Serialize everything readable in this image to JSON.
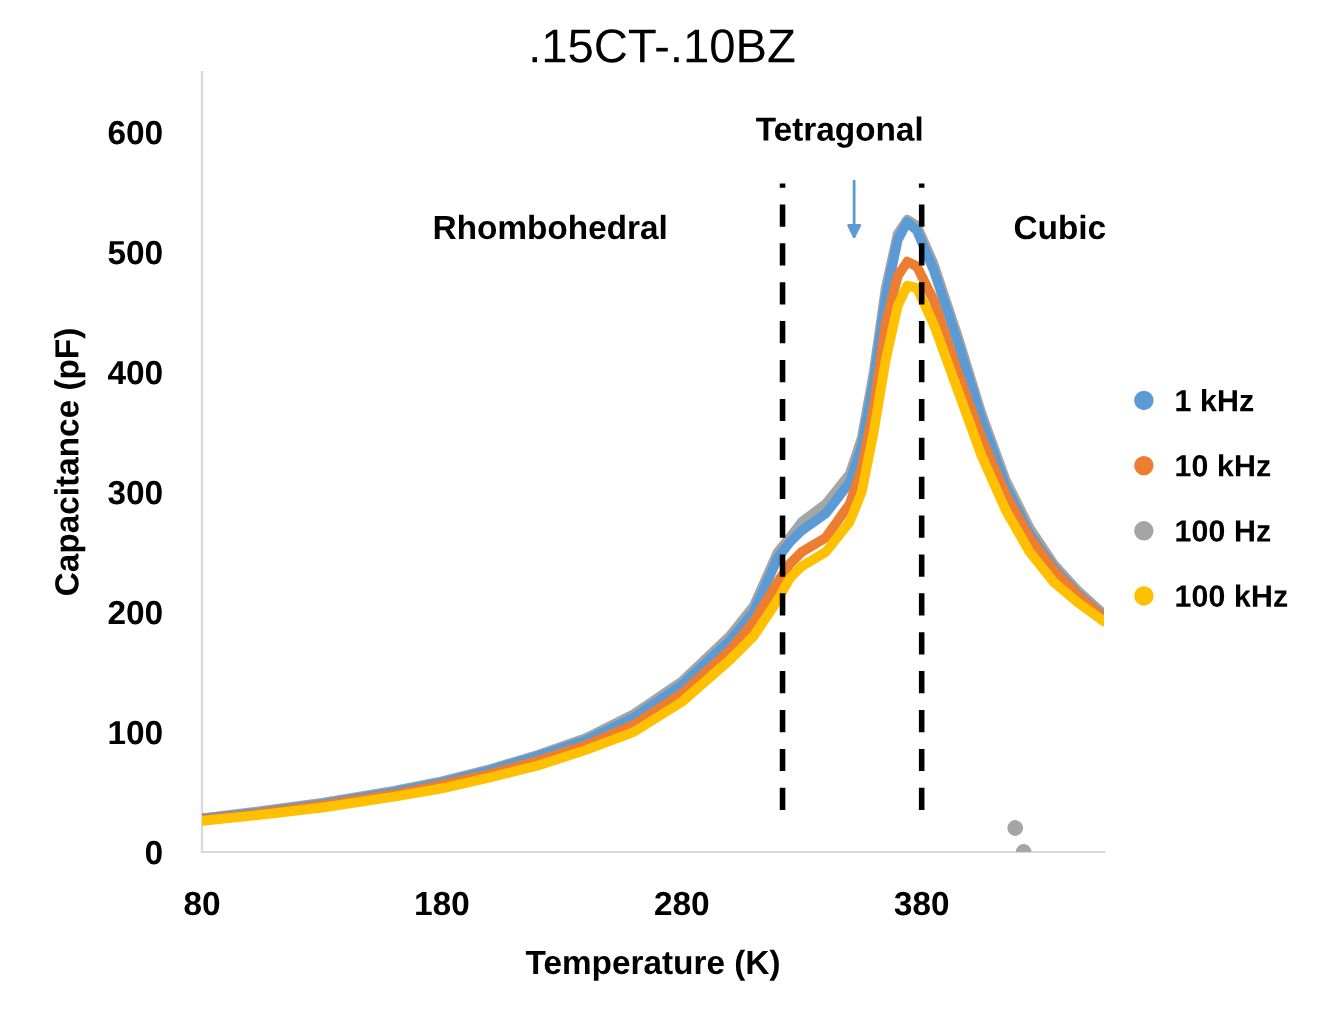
{
  "chart_data": {
    "type": "line",
    "title": ".15CT-.10BZ",
    "xlabel": "Temperature (K)",
    "ylabel": "Capacitance (pF)",
    "x": [
      80,
      100,
      130,
      160,
      180,
      200,
      220,
      240,
      260,
      280,
      300,
      310,
      320,
      325,
      330,
      340,
      350,
      355,
      360,
      365,
      370,
      374,
      378,
      385,
      395,
      405,
      415,
      425,
      435,
      445,
      456
    ],
    "series": [
      {
        "name": "1 kHz",
        "color": "#5b9bd5",
        "values": [
          28,
          32,
          40,
          50,
          58,
          68,
          80,
          93,
          112,
          139,
          176,
          200,
          245,
          258,
          268,
          282,
          308,
          338,
          392,
          462,
          510,
          525,
          518,
          485,
          425,
          360,
          305,
          265,
          237,
          215,
          196
        ]
      },
      {
        "name": "10 kHz",
        "color": "#ed7d31",
        "values": [
          27,
          31,
          39,
          48,
          56,
          65,
          76,
          89,
          106,
          132,
          168,
          192,
          225,
          240,
          250,
          262,
          290,
          320,
          370,
          440,
          480,
          492,
          488,
          460,
          400,
          345,
          298,
          262,
          235,
          214,
          195
        ]
      },
      {
        "name": "100 Hz",
        "color": "#a5a5a5",
        "values": [
          28,
          33,
          41,
          51,
          59,
          69,
          81,
          95,
          115,
          142,
          180,
          205,
          250,
          262,
          275,
          290,
          315,
          345,
          400,
          470,
          515,
          527,
          522,
          490,
          430,
          365,
          310,
          270,
          240,
          218,
          198
        ]
      },
      {
        "name": "100 kHz",
        "color": "#ffc000",
        "values": [
          26,
          30,
          37,
          46,
          53,
          62,
          72,
          85,
          100,
          125,
          160,
          180,
          210,
          228,
          238,
          250,
          275,
          300,
          350,
          410,
          455,
          472,
          470,
          440,
          385,
          330,
          285,
          250,
          225,
          208,
          192
        ]
      },
      {
        "type": "scatter",
        "color": "#a5a5a5",
        "x": [
          419,
          422.5
        ],
        "values": [
          20,
          0
        ]
      }
    ],
    "xlim": [
      80,
      456
    ],
    "xticks": [
      80,
      180,
      280,
      380
    ],
    "ylim": [
      0,
      650
    ],
    "yticks": [
      0,
      100,
      200,
      300,
      400,
      500,
      600
    ],
    "ref_lines": [
      {
        "axis": "x",
        "value": 322,
        "color": "#000000",
        "line_style": "dashed"
      },
      {
        "axis": "x",
        "value": 380,
        "color": "#000000",
        "line_style": "dashed"
      }
    ],
    "annotations": [
      "Rhombohedral",
      "Tetragonal",
      "Cubic"
    ],
    "legend": "right",
    "grid": false
  }
}
